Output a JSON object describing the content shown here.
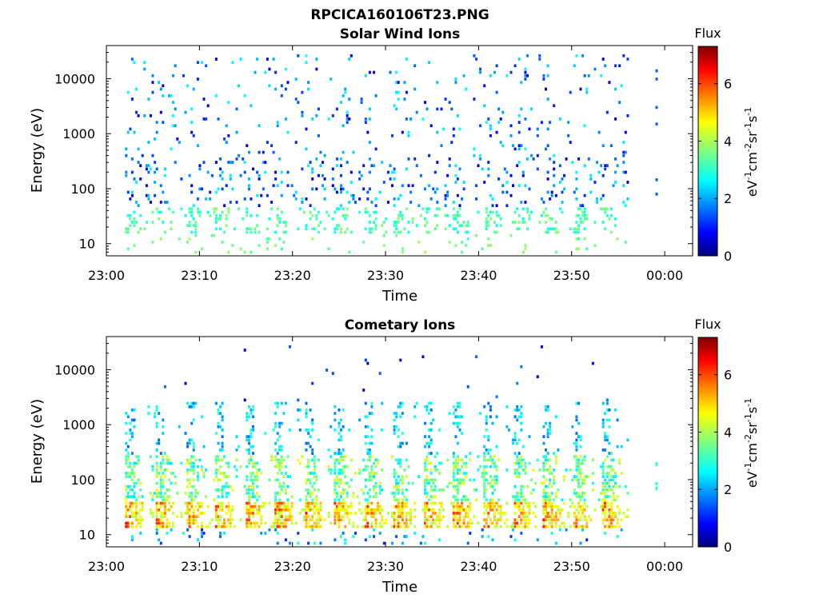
{
  "figure": {
    "title": "RPCICA160106T23.PNG"
  },
  "colorbar": {
    "label": "Flux",
    "unit": "eV-1cm-2sr-1s-1",
    "range": [
      0,
      7.3
    ],
    "ticks": [
      "0",
      "2",
      "4",
      "6"
    ]
  },
  "chart_data": [
    {
      "type": "heatmap",
      "title": "Solar Wind Ions",
      "xlabel": "Time",
      "ylabel": "Energy (eV)",
      "xlim": [
        "23:00",
        "00:03"
      ],
      "ylim": [
        6,
        40000
      ],
      "ylog": true,
      "xticks": [
        "23:00",
        "23:10",
        "23:20",
        "23:30",
        "23:40",
        "23:50",
        "00:00"
      ],
      "yticks": [
        "10",
        "100",
        "1000",
        "10000"
      ],
      "data_start": "23:02",
      "data_end": "23:56",
      "cycle_minutes": 3.2,
      "flux_range_eV": [
        {
          "energy_min": 10,
          "energy_max": 100,
          "typical_flux": 2.5
        },
        {
          "energy_min": 30,
          "energy_max": 300,
          "typical_flux": 1
        },
        {
          "energy_min": 300,
          "energy_max": 20000,
          "typical_flux": 1.5
        }
      ]
    },
    {
      "type": "heatmap",
      "title": "Cometary Ions",
      "xlabel": "Time",
      "ylabel": "Energy (eV)",
      "xlim": [
        "23:00",
        "00:03"
      ],
      "ylim": [
        6,
        40000
      ],
      "ylog": true,
      "xticks": [
        "23:00",
        "23:10",
        "23:20",
        "23:30",
        "23:40",
        "23:50",
        "00:00"
      ],
      "yticks": [
        "10",
        "100",
        "1000",
        "10000"
      ],
      "data_start": "23:02",
      "data_end": "23:56",
      "cycle_minutes": 3.2,
      "flux_range_eV": [
        {
          "energy_min": 12,
          "energy_max": 40,
          "typical_flux": 5.5
        },
        {
          "energy_min": 40,
          "energy_max": 300,
          "typical_flux": 3.5
        },
        {
          "energy_min": 300,
          "energy_max": 2000,
          "typical_flux": 2
        }
      ]
    }
  ]
}
